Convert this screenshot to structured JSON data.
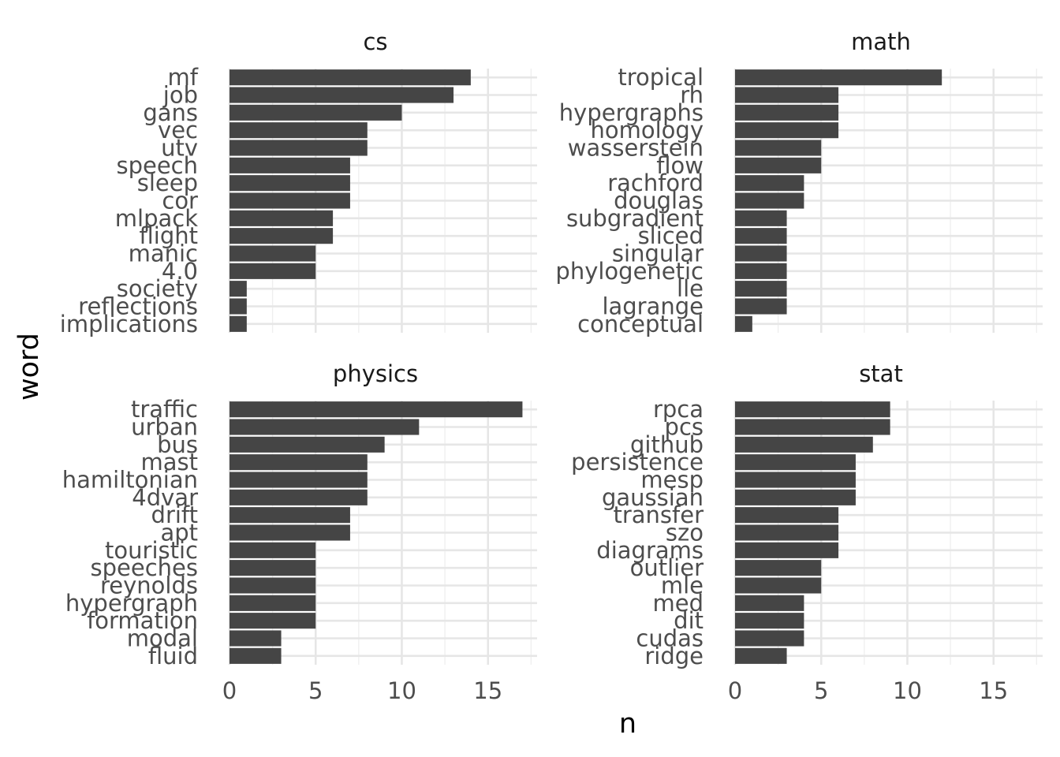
{
  "chart_data": {
    "type": "bar",
    "orientation": "horizontal",
    "xlabel": "n",
    "ylabel": "word",
    "xlim": [
      0,
      17.85
    ],
    "xticks": [
      0,
      5,
      10,
      15
    ],
    "grid": true,
    "bar_color": "#454545",
    "panels": [
      {
        "title": "cs",
        "categories": [
          "mf",
          "job",
          "gans",
          "vec",
          "utv",
          "speech",
          "sleep",
          "cor",
          "mlpack",
          "flight",
          "manic",
          "4.0",
          "society",
          "reflections",
          "implications"
        ],
        "values": [
          14,
          13,
          10,
          8,
          8,
          7,
          7,
          7,
          6,
          6,
          5,
          5,
          1,
          1,
          1
        ]
      },
      {
        "title": "math",
        "categories": [
          "tropical",
          "rh",
          "hypergraphs",
          "homology",
          "wasserstein",
          "flow",
          "rachford",
          "douglas",
          "subgradient",
          "sliced",
          "singular",
          "phylogenetic",
          "lle",
          "lagrange",
          "conceptual"
        ],
        "values": [
          12,
          6,
          6,
          6,
          5,
          5,
          4,
          4,
          3,
          3,
          3,
          3,
          3,
          3,
          1
        ]
      },
      {
        "title": "physics",
        "categories": [
          "traffic",
          "urban",
          "bus",
          "mast",
          "hamiltonian",
          "4dvar",
          "drift",
          "apt",
          "touristic",
          "speeches",
          "reynolds",
          "hypergraph",
          "formation",
          "modal",
          "fluid"
        ],
        "values": [
          17,
          11,
          9,
          8,
          8,
          8,
          7,
          7,
          5,
          5,
          5,
          5,
          5,
          3,
          3
        ]
      },
      {
        "title": "stat",
        "categories": [
          "rpca",
          "pcs",
          "github",
          "persistence",
          "mesp",
          "gaussian",
          "transfer",
          "szo",
          "diagrams",
          "outlier",
          "mle",
          "med",
          "dit",
          "cudas",
          "ridge"
        ],
        "values": [
          9,
          9,
          8,
          7,
          7,
          7,
          6,
          6,
          6,
          5,
          5,
          4,
          4,
          4,
          3
        ]
      }
    ]
  }
}
